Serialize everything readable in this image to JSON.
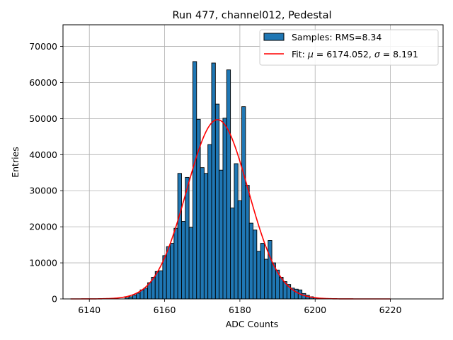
{
  "chart_data": {
    "type": "bar",
    "title": "Run 477, channel012, Pedestal",
    "xlabel": "ADC Counts",
    "ylabel": "Entries",
    "xlim": [
      6133,
      6234
    ],
    "ylim": [
      0,
      76000
    ],
    "xticks": [
      6140,
      6160,
      6180,
      6200,
      6220
    ],
    "yticks": [
      0,
      10000,
      20000,
      30000,
      40000,
      50000,
      60000,
      70000
    ],
    "grid": true,
    "legend_position": "top-right",
    "bin_width": 1,
    "histogram": {
      "name": "Samples: RMS=8.34",
      "color": "#1f77b4",
      "bins": [
        6150,
        6151,
        6152,
        6153,
        6154,
        6155,
        6156,
        6157,
        6158,
        6159,
        6160,
        6161,
        6162,
        6163,
        6164,
        6165,
        6166,
        6167,
        6168,
        6169,
        6170,
        6171,
        6172,
        6173,
        6174,
        6175,
        6176,
        6177,
        6178,
        6179,
        6180,
        6181,
        6182,
        6183,
        6184,
        6185,
        6186,
        6187,
        6188,
        6189,
        6190,
        6191,
        6192,
        6193,
        6194,
        6195,
        6196,
        6197,
        6198,
        6199,
        6200
      ],
      "values": [
        300,
        600,
        1100,
        1600,
        2500,
        3000,
        4500,
        6000,
        7600,
        7800,
        12000,
        14500,
        15400,
        19600,
        34800,
        21500,
        33700,
        19800,
        65800,
        49800,
        36400,
        34800,
        42800,
        65400,
        54000,
        35700,
        50100,
        63500,
        25200,
        37500,
        27200,
        53300,
        31500,
        21000,
        19100,
        13200,
        15400,
        11000,
        16200,
        10000,
        8000,
        6000,
        4800,
        4000,
        3000,
        2700,
        2500,
        1500,
        1000,
        600,
        300
      ]
    },
    "fit": {
      "name": "Fit: μ = 6174.052, σ = 8.191",
      "color": "#ff0000",
      "mu": 6174.052,
      "sigma": 8.191,
      "amplitude": 49700,
      "x_range": [
        6135,
        6220
      ]
    }
  },
  "legend": {
    "samples_label": "Samples: RMS=8.34",
    "fit_label_prefix": "Fit: ",
    "mu_symbol": "μ",
    "mu_text": " = 6174.052, ",
    "sigma_symbol": "σ",
    "sigma_text": " = 8.191"
  }
}
